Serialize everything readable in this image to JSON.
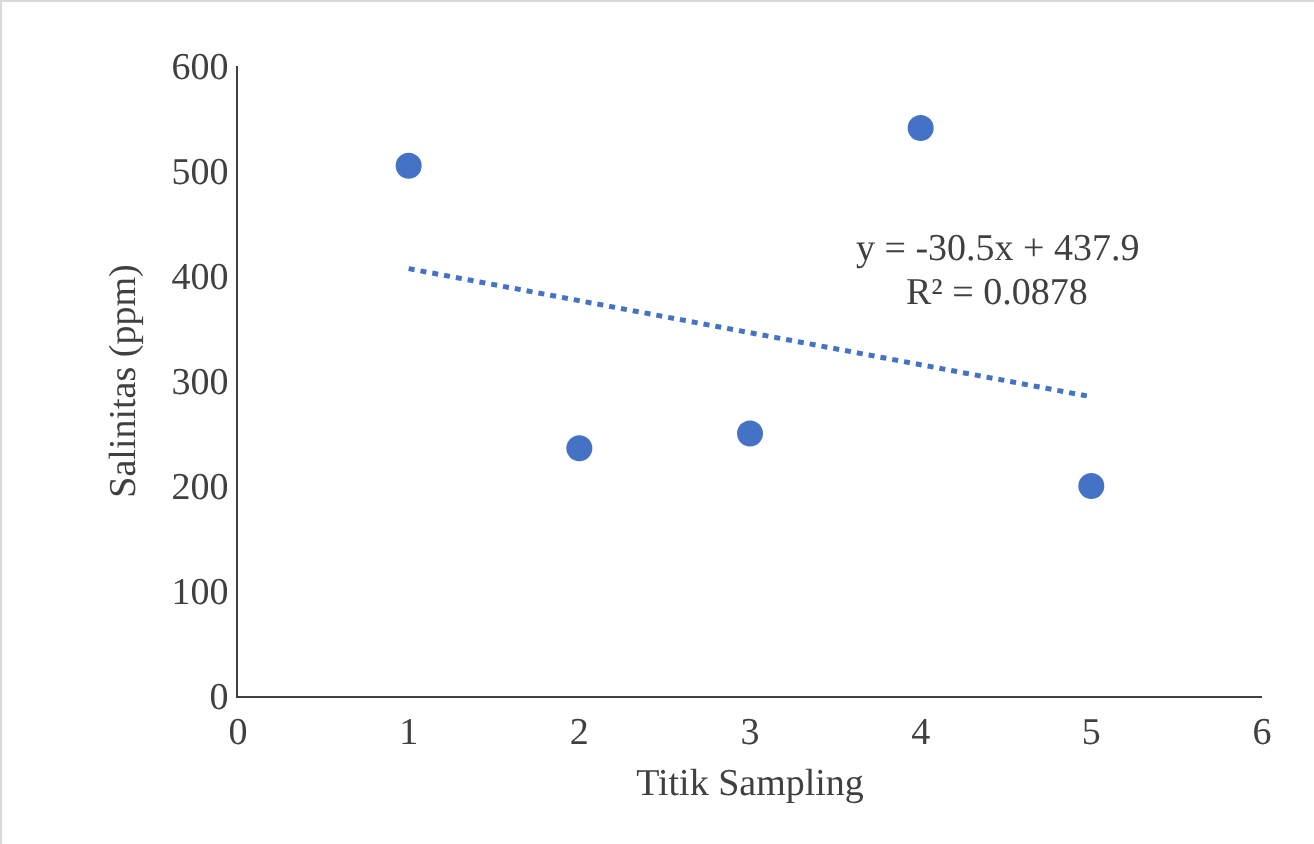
{
  "chart_data": {
    "type": "scatter",
    "xlabel": "Titik Sampling",
    "ylabel": "Salinitas (ppm)",
    "x": [
      1,
      2,
      3,
      4,
      5
    ],
    "series": [
      {
        "color": "#4472c4",
        "values": [
          505,
          236,
          250,
          541,
          200
        ],
        "marker": "circle"
      },
      {
        "type": "line",
        "color": "#4472c4",
        "x": [
          1,
          5
        ],
        "values": [
          407,
          285
        ],
        "line_style": "dotted",
        "marker": "none"
      }
    ],
    "annotations": [
      "y = -30.5x + 437.9",
      "R² = 0.0878"
    ],
    "xlim": [
      0,
      6
    ],
    "xticks": [
      0,
      1,
      2,
      3,
      4,
      5,
      6
    ],
    "ylim": [
      0,
      600
    ],
    "yticks": [
      0,
      100,
      200,
      300,
      400,
      500,
      600
    ],
    "grid": false
  }
}
